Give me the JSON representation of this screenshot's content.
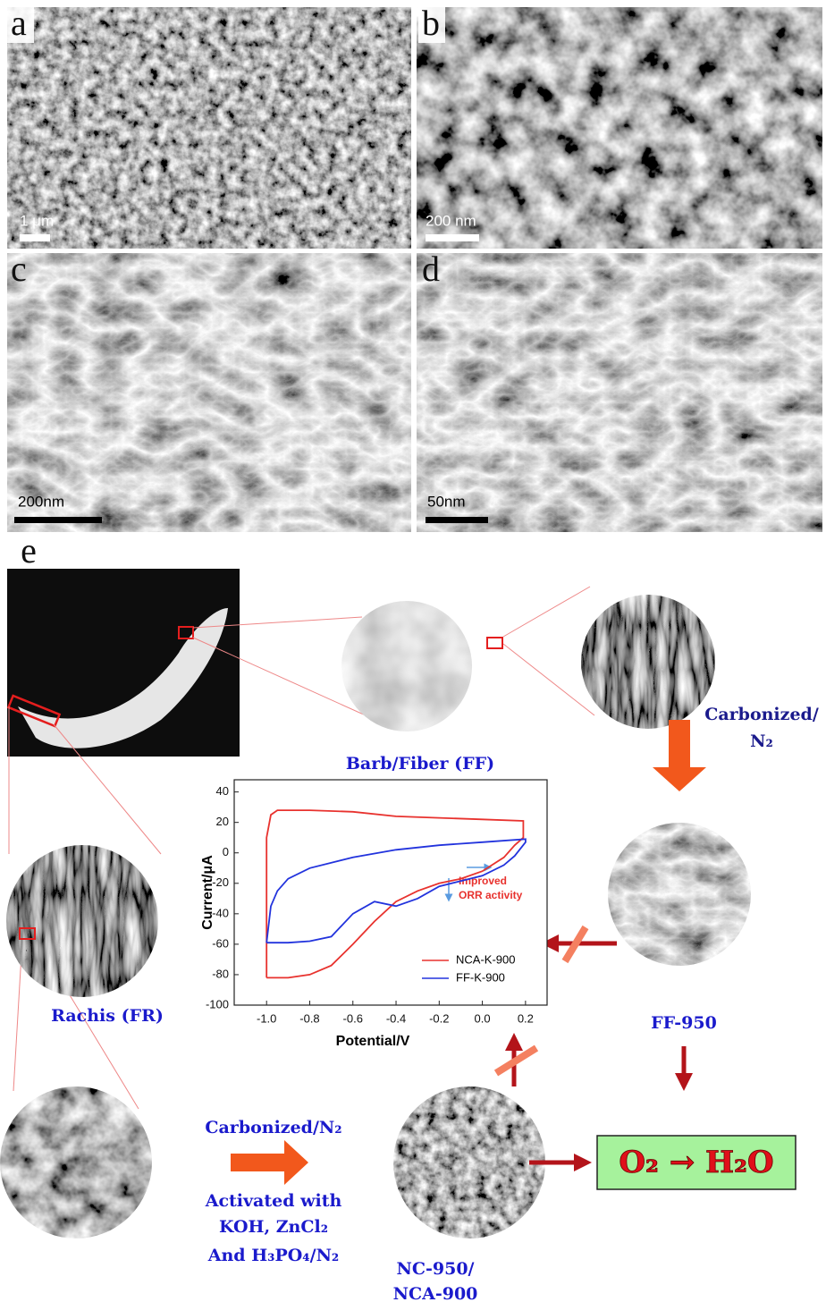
{
  "panels": [
    {
      "label": "a",
      "scale_bar": "1 μm"
    },
    {
      "label": "b",
      "scale_bar": "200 nm"
    },
    {
      "label": "c",
      "scale_bar": "200nm"
    },
    {
      "label": "d",
      "scale_bar": "50nm"
    }
  ],
  "schematic": {
    "label": "e",
    "barb": "Barb/Fiber (FF)",
    "carbonized_top": [
      "Carbonized/",
      "N₂"
    ],
    "rachis": "Rachis (FR)",
    "ff950": "FF-950",
    "carbonized_bottom": "Carbonized/N₂",
    "activated": [
      "Activated with",
      "KOH, ZnCl₂",
      "And H₃PO₄/N₂"
    ],
    "product": [
      "NC-950/",
      "NCA-900"
    ],
    "reaction": "O₂ → H₂O"
  },
  "chart_data": {
    "type": "line",
    "xlabel": "Potential/V",
    "ylabel": "Current/μA",
    "annotation": [
      "Improved",
      "ORR activity"
    ],
    "xlim": [
      -1.15,
      0.3
    ],
    "ylim": [
      -100,
      48
    ],
    "xticks": [
      {
        "value": -1.0,
        "label": "-1.0"
      },
      -0.8,
      -0.6,
      -0.4,
      -0.2,
      {
        "value": 0.0,
        "label": "0.0"
      },
      0.2
    ],
    "yticks": [
      40,
      20,
      0,
      -20,
      -40,
      -60,
      -80,
      -100
    ],
    "legend": "lower right",
    "series": [
      {
        "name": "NCA-K-900",
        "color": "#e8322e",
        "x": [
          -1.0,
          -1.0,
          -0.98,
          -0.95,
          -0.8,
          -0.6,
          -0.4,
          -0.2,
          0.0,
          0.19,
          0.19,
          0.15,
          0.1,
          0.0,
          -0.1,
          -0.2,
          -0.3,
          -0.4,
          -0.5,
          -0.6,
          -0.7,
          -0.8,
          -0.9,
          -1.0
        ],
        "values": [
          -82,
          10,
          25,
          28,
          28,
          27,
          24,
          23,
          22,
          21,
          10,
          5,
          -3,
          -12,
          -17,
          -20,
          -25,
          -32,
          -45,
          -60,
          -74,
          -80,
          -82,
          -82
        ]
      },
      {
        "name": "FF-K-900",
        "color": "#2233dd",
        "x": [
          -1.0,
          -0.98,
          -0.95,
          -0.9,
          -0.8,
          -0.6,
          -0.4,
          -0.2,
          0.0,
          0.2,
          0.2,
          0.15,
          0.1,
          0.0,
          -0.2,
          -0.3,
          -0.4,
          -0.5,
          -0.6,
          -0.7,
          -0.8,
          -0.9,
          -1.0
        ],
        "values": [
          -59,
          -35,
          -25,
          -17,
          -10,
          -3,
          2,
          5,
          7,
          9,
          7,
          -2,
          -8,
          -15,
          -22,
          -30,
          -35,
          -32,
          -40,
          -55,
          -58,
          -59,
          -59
        ]
      }
    ]
  }
}
